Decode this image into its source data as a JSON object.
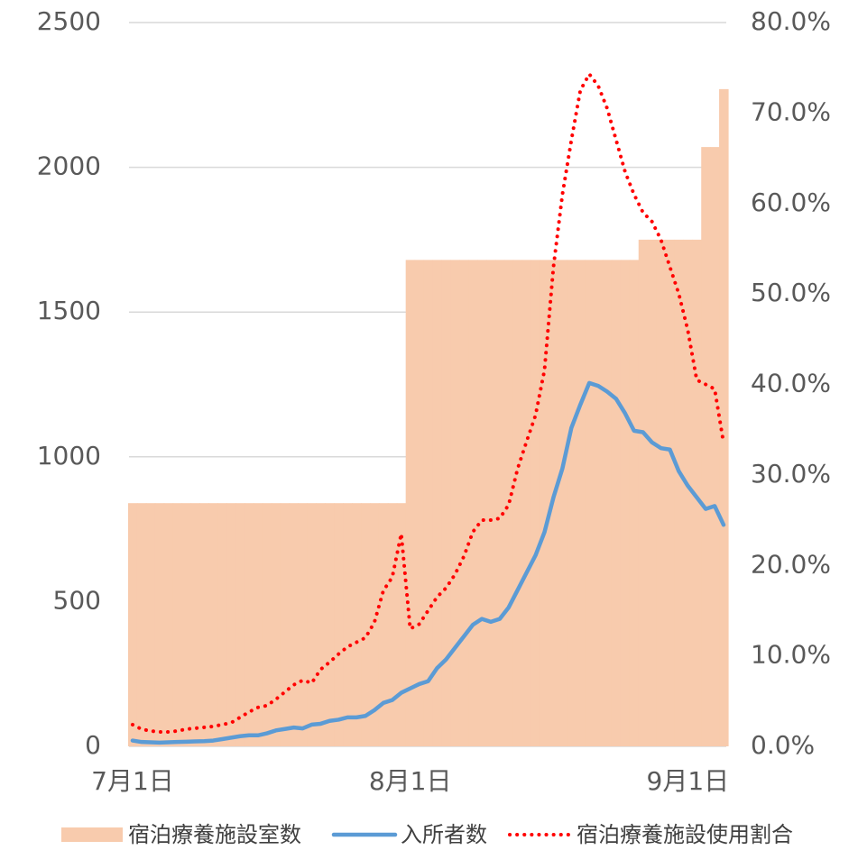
{
  "chart_data": {
    "type": "combo",
    "categories": [
      "7月1日",
      null,
      null,
      null,
      null,
      null,
      null,
      null,
      null,
      null,
      null,
      null,
      null,
      null,
      null,
      null,
      null,
      null,
      null,
      null,
      null,
      null,
      null,
      null,
      null,
      null,
      null,
      null,
      null,
      null,
      null,
      "8月1日",
      null,
      null,
      null,
      null,
      null,
      null,
      null,
      null,
      null,
      null,
      null,
      null,
      null,
      null,
      null,
      null,
      null,
      null,
      null,
      null,
      null,
      null,
      null,
      null,
      null,
      null,
      null,
      null,
      null,
      null,
      "9月1日",
      null,
      null,
      null,
      null
    ],
    "series": [
      {
        "name": "宿泊療養施設室数",
        "type": "bar",
        "color": "#F8CBAD",
        "values": [
          840,
          840,
          840,
          840,
          840,
          840,
          840,
          840,
          840,
          840,
          840,
          840,
          840,
          840,
          840,
          840,
          840,
          840,
          840,
          840,
          840,
          840,
          840,
          840,
          840,
          840,
          840,
          840,
          840,
          840,
          840,
          1680,
          1680,
          1680,
          1680,
          1680,
          1680,
          1680,
          1680,
          1680,
          1680,
          1680,
          1680,
          1680,
          1680,
          1680,
          1680,
          1680,
          1680,
          1680,
          1680,
          1680,
          1680,
          1680,
          1680,
          1680,
          1680,
          1750,
          1750,
          1750,
          1750,
          1750,
          1750,
          1750,
          2070,
          2070,
          2270
        ]
      },
      {
        "name": "入所者数",
        "type": "line",
        "color": "#5B9BD5",
        "values": [
          20,
          15,
          14,
          13,
          14,
          15,
          16,
          17,
          18,
          20,
          25,
          30,
          35,
          38,
          38,
          45,
          55,
          60,
          65,
          62,
          75,
          78,
          88,
          92,
          100,
          100,
          105,
          125,
          150,
          160,
          185,
          200,
          215,
          225,
          270,
          300,
          340,
          380,
          420,
          440,
          430,
          440,
          480,
          540,
          600,
          660,
          740,
          860,
          960,
          1100,
          1180,
          1255,
          1245,
          1225,
          1200,
          1150,
          1090,
          1085,
          1050,
          1030,
          1025,
          950,
          900,
          860,
          820,
          830,
          765
        ]
      },
      {
        "name": "宿泊療養施設使用割合",
        "type": "line",
        "style": "dotted",
        "axis": "y2",
        "color": "#FF0000",
        "values": [
          2.4,
          1.9,
          1.7,
          1.6,
          1.6,
          1.7,
          1.9,
          2.0,
          2.1,
          2.2,
          2.4,
          2.6,
          3.2,
          3.8,
          4.3,
          4.5,
          5.2,
          6.0,
          6.8,
          7.3,
          7.0,
          8.5,
          9.3,
          10.2,
          11.0,
          11.5,
          12.0,
          13.7,
          17.2,
          18.7,
          23.5,
          13.0,
          13.5,
          15.0,
          16.5,
          17.5,
          19.0,
          21.0,
          23.7,
          25.0,
          25.0,
          25.2,
          26.7,
          30.7,
          33.7,
          36.6,
          41.6,
          53.0,
          61.0,
          67.0,
          72.5,
          74.3,
          73.0,
          70.5,
          67.0,
          63.5,
          61.0,
          59.0,
          58.0,
          56.0,
          53.0,
          50.0,
          46.0,
          40.5,
          40.0,
          39.5,
          33.5
        ]
      }
    ],
    "ylim": [
      0,
      2500
    ],
    "yticks": [
      0,
      500,
      1000,
      1500,
      2000,
      2500
    ],
    "y2lim": [
      0,
      80
    ],
    "y2ticks": [
      {
        "value": 0,
        "label": "0.0%"
      },
      {
        "value": 10,
        "label": "10.0%"
      },
      {
        "value": 20,
        "label": "20.0%"
      },
      {
        "value": 30,
        "label": "30.0%"
      },
      {
        "value": 40,
        "label": "40.0%"
      },
      {
        "value": 50,
        "label": "50.0%"
      },
      {
        "value": 60,
        "label": "60.0%"
      },
      {
        "value": 70,
        "label": "70.0%"
      },
      {
        "value": 80,
        "label": "80.0%"
      }
    ],
    "grid": true,
    "legend": "bottom"
  }
}
